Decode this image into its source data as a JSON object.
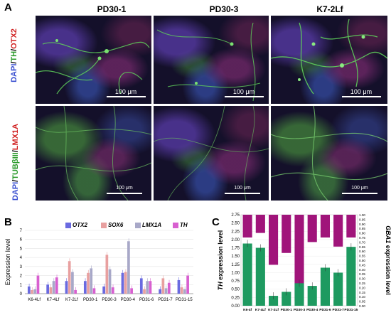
{
  "panelA": {
    "letter": "A",
    "columns": [
      "PD30-1",
      "PD30-3",
      "K7-2Lf"
    ],
    "row1_label": {
      "dapi": "DAPI",
      "s1": "/",
      "th": "TH",
      "s2": "/",
      "marker": "OTX2"
    },
    "row2_label": {
      "dapi": "DAPI",
      "s1": "/",
      "tub": "TUBβIII",
      "s2": "/",
      "marker": "LMX1A"
    },
    "scale_row1": "100 μm",
    "scale_row2": "100 μm"
  },
  "panelB": {
    "letter": "B",
    "colors": {
      "OTX2": "#6a6ae0",
      "SOX6": "#e8a0a0",
      "LMX1A": "#a8a8c8",
      "TH": "#d860d0"
    },
    "chart_data": {
      "type": "bar",
      "categories": [
        "K6-4Lf",
        "K7-4Lf",
        "K7-2Lf",
        "PD30-1",
        "PD30-3",
        "PD30-4",
        "PD31-6",
        "PD31-7",
        "PD31-15"
      ],
      "series": [
        {
          "name": "OTX2",
          "values": [
            0.8,
            1.0,
            1.4,
            1.4,
            0.8,
            2.3,
            1.7,
            0.5,
            1.5
          ]
        },
        {
          "name": "SOX6",
          "values": [
            0.4,
            0.7,
            3.6,
            2.3,
            4.3,
            2.4,
            0.5,
            1.7,
            0.7
          ]
        },
        {
          "name": "LMX1A",
          "values": [
            0.5,
            1.4,
            2.4,
            2.8,
            2.7,
            5.8,
            1.4,
            0.6,
            0.5
          ]
        },
        {
          "name": "TH",
          "values": [
            2.0,
            1.8,
            0.4,
            0.6,
            0.7,
            0.6,
            1.4,
            1.2,
            2.0
          ]
        }
      ],
      "ylabel": "Expression level",
      "ylim": [
        0,
        7
      ],
      "yticks": [
        "0",
        "1",
        "2",
        "3",
        "4",
        "5",
        "6",
        "7"
      ]
    }
  },
  "panelC": {
    "letter": "C",
    "colors": {
      "TH": "#1e9a60",
      "GBA1": "#a0147a"
    },
    "chart_data": {
      "type": "bar",
      "categories": [
        "K6-4f",
        "K7-4Lf",
        "K7-2Lf",
        "PD30-1",
        "PD30-3",
        "PD30-4",
        "PD31-6",
        "PD31-7",
        "PD31-15"
      ],
      "series": [
        {
          "name": "TH",
          "values": [
            1.88,
            1.75,
            0.3,
            0.42,
            0.68,
            0.6,
            1.15,
            1.0,
            1.78
          ]
        },
        {
          "name": "GBA1",
          "values": [
            0.25,
            0.2,
            0.55,
            0.42,
            0.95,
            0.3,
            0.25,
            0.35,
            0.25
          ]
        }
      ],
      "ylabel_left": "TH",
      "ylabel_left_suffix": "expression level",
      "ylabel_right": "GBA1",
      "ylabel_right_suffix": "expression level",
      "ylim_left": [
        0,
        2.75
      ],
      "ylim_right": [
        0,
        1.0
      ],
      "yticks_left": [
        "0.00",
        "0.25",
        "0.50",
        "0.75",
        "1.00",
        "1.25",
        "1.50",
        "1.75",
        "2.00",
        "2.25",
        "2.50",
        "2.75"
      ],
      "yticks_right": [
        "0.00",
        "0.05",
        "0.10",
        "0.15",
        "0.20",
        "0.25",
        "0.30",
        "0.35",
        "0.40",
        "0.45",
        "0.50",
        "0.55",
        "0.60",
        "0.65",
        "0.70",
        "0.75",
        "0.80",
        "0.85",
        "0.90",
        "0.95",
        "1.00"
      ]
    }
  }
}
